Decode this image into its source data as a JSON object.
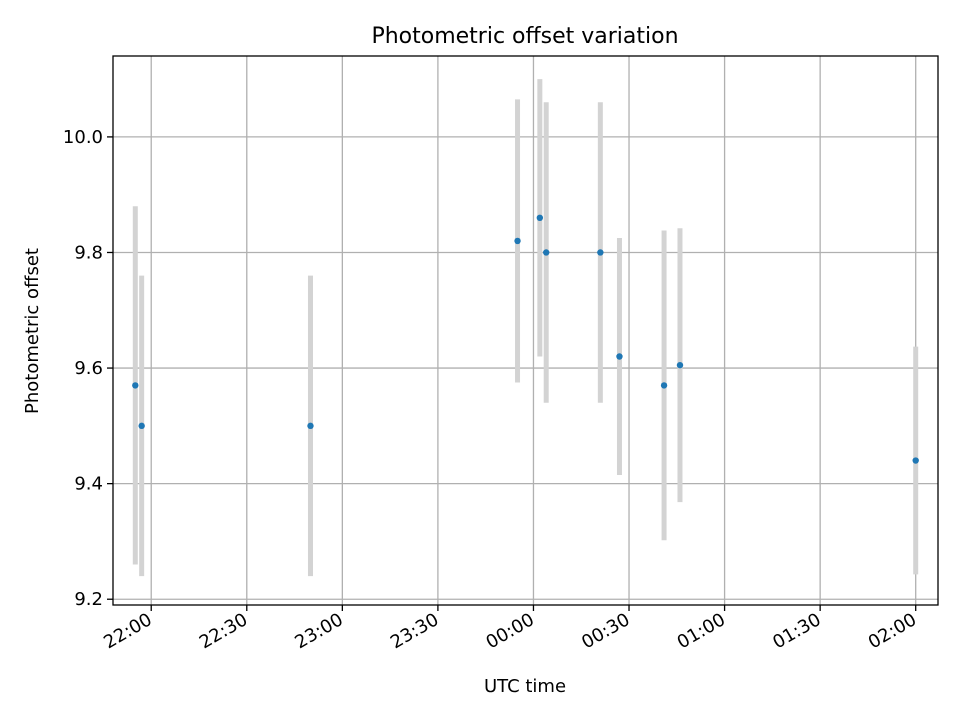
{
  "chart_data": {
    "type": "scatter",
    "title": "Photometric offset variation",
    "xlabel": "UTC time",
    "ylabel": "Photometric offset",
    "x_ticks": [
      "22:00",
      "22:30",
      "23:00",
      "23:30",
      "00:00",
      "00:30",
      "01:00",
      "01:30",
      "02:00"
    ],
    "y_ticks": [
      "9.2",
      "9.4",
      "9.6",
      "9.8",
      "10.0"
    ],
    "y_tick_values": [
      9.2,
      9.4,
      9.6,
      9.8,
      10.0
    ],
    "xlim": [
      "21:48",
      "02:07"
    ],
    "ylim": [
      9.19,
      10.14
    ],
    "grid": true,
    "colors": {
      "point": "#1f77b4",
      "errorbar": "#d3d3d3",
      "grid": "#b0b0b0"
    },
    "series": [
      {
        "points": [
          {
            "x": "21:55",
            "y": 9.57,
            "yerr": 0.31
          },
          {
            "x": "21:57",
            "y": 9.5,
            "yerr": 0.26
          },
          {
            "x": "22:50",
            "y": 9.5,
            "yerr": 0.26
          },
          {
            "x": "23:55",
            "y": 9.82,
            "yerr": 0.245
          },
          {
            "x": "00:02",
            "y": 9.86,
            "yerr": 0.24
          },
          {
            "x": "00:04",
            "y": 9.8,
            "yerr": 0.26
          },
          {
            "x": "00:21",
            "y": 9.8,
            "yerr": 0.26
          },
          {
            "x": "00:27",
            "y": 9.62,
            "yerr": 0.205
          },
          {
            "x": "00:41",
            "y": 9.57,
            "yerr": 0.268
          },
          {
            "x": "00:46",
            "y": 9.605,
            "yerr": 0.237
          },
          {
            "x": "02:00",
            "y": 9.44,
            "yerr": 0.197
          }
        ]
      }
    ]
  }
}
